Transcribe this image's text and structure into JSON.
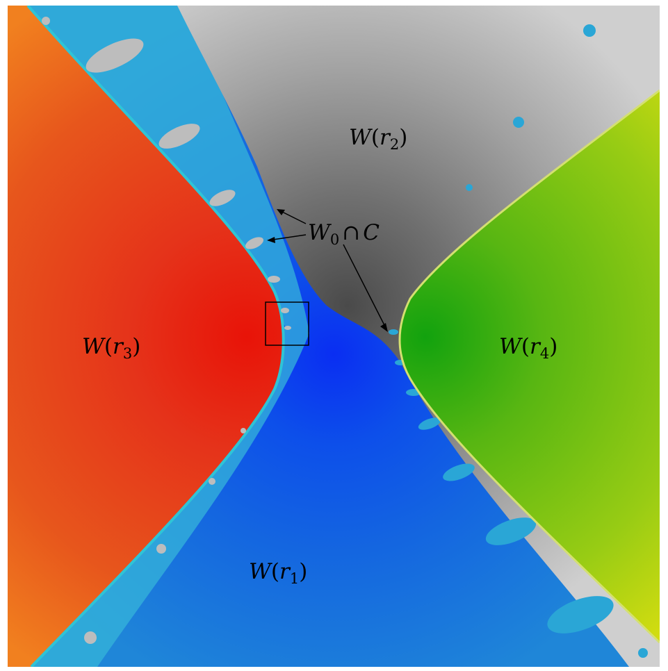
{
  "figure": {
    "labels": {
      "r1": {
        "fn": "W",
        "var": "r",
        "sub": "1"
      },
      "r2": {
        "fn": "W",
        "var": "r",
        "sub": "2"
      },
      "r3": {
        "fn": "W",
        "var": "r",
        "sub": "3"
      },
      "r4": {
        "fn": "W",
        "var": "r",
        "sub": "4"
      },
      "w0c": {
        "fn": "W",
        "sub": "0",
        "op": "∩",
        "set": "C"
      }
    },
    "colors": {
      "blue_basin": "#1064e8",
      "gray_basin": "#8a8a8a",
      "red_basin": "#e5401a",
      "green_basin": "#8cc412",
      "boundary": "#2fc4d6"
    }
  }
}
